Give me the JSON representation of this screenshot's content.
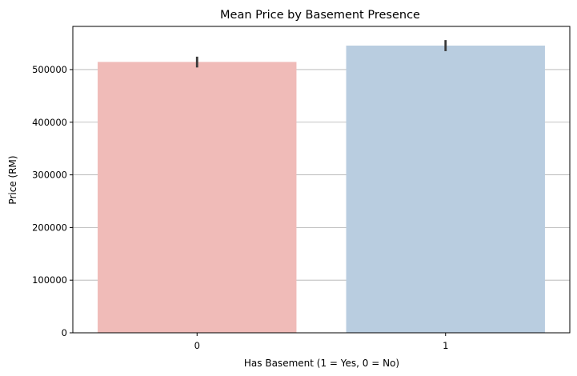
{
  "chart_data": {
    "type": "bar",
    "title": "Mean Price by Basement Presence",
    "xlabel": "Has Basement (1 = Yes, 0 = No)",
    "ylabel": "Price (RM)",
    "categories": [
      "0",
      "1"
    ],
    "values": [
      514500,
      545500
    ],
    "error_bars": [
      {
        "low": 504000,
        "high": 524500
      },
      {
        "low": 535000,
        "high": 556000
      }
    ],
    "colors": [
      "#f0bbb8",
      "#b9cde0"
    ],
    "ylim": [
      0,
      582000
    ],
    "yticks": [
      0,
      100000,
      200000,
      300000,
      400000,
      500000
    ],
    "ytick_labels": [
      "0",
      "100000",
      "200000",
      "300000",
      "400000",
      "500000"
    ],
    "grid": {
      "axis": "y",
      "on": true,
      "color": "#b0b0b0"
    },
    "errorbar_color": "#3a3a3a"
  }
}
